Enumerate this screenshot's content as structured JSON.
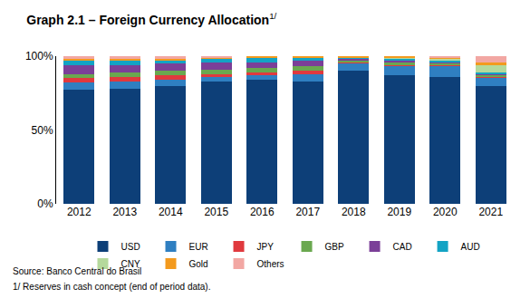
{
  "chart_data": {
    "type": "bar",
    "stacked": true,
    "title": "Graph 2.1 – Foreign Currency Allocation",
    "title_note": "1/",
    "categories": [
      "2012",
      "2013",
      "2014",
      "2015",
      "2016",
      "2017",
      "2018",
      "2019",
      "2020",
      "2021"
    ],
    "series": [
      {
        "name": "USD",
        "color": "#0d3f78",
        "values": [
          77,
          78,
          80,
          83,
          84,
          83,
          90,
          87,
          86,
          80
        ]
      },
      {
        "name": "EUR",
        "color": "#2f7fc1",
        "values": [
          5,
          5,
          4,
          3,
          3,
          5,
          5,
          6,
          7,
          5
        ]
      },
      {
        "name": "JPY",
        "color": "#e0393e",
        "values": [
          3,
          3,
          3,
          2,
          2,
          2,
          1,
          1,
          1,
          1
        ]
      },
      {
        "name": "GBP",
        "color": "#6aa84f",
        "values": [
          3,
          3,
          3,
          3,
          3,
          3,
          1,
          2,
          1,
          1
        ]
      },
      {
        "name": "CAD",
        "color": "#7b3f98",
        "values": [
          6,
          5,
          5,
          5,
          4,
          4,
          1,
          1,
          1,
          1
        ]
      },
      {
        "name": "AUD",
        "color": "#13a3c4",
        "values": [
          3,
          3,
          2,
          2,
          3,
          2,
          1,
          1,
          1,
          1
        ]
      },
      {
        "name": "CNY",
        "color": "#b5d99c",
        "values": [
          0,
          0,
          0,
          0,
          0,
          0,
          0,
          1,
          1,
          5
        ]
      },
      {
        "name": "Gold",
        "color": "#f39a1e",
        "values": [
          1,
          1,
          1,
          1,
          1,
          1,
          1,
          1,
          1,
          2
        ]
      },
      {
        "name": "Others",
        "color": "#f2a7a3",
        "values": [
          2,
          2,
          2,
          1,
          0,
          0,
          0,
          0,
          1,
          4
        ]
      }
    ],
    "ylim": [
      0,
      100
    ],
    "yticks": [
      {
        "value": 0,
        "label": "0%"
      },
      {
        "value": 50,
        "label": "50%"
      },
      {
        "value": 100,
        "label": "100%"
      }
    ],
    "grid": false,
    "legend": "bottom",
    "annotations": [
      "Source: Banco Central do Brasil",
      "1/ Reserves in cash concept (end of period data)."
    ]
  }
}
